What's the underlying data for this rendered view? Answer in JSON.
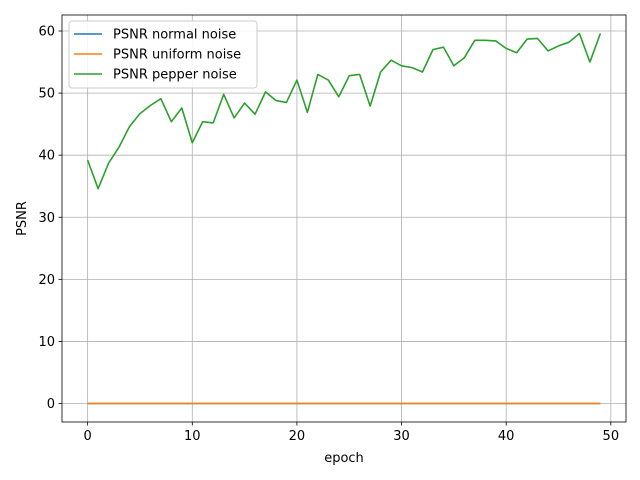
{
  "chart_data": {
    "type": "line",
    "title": "",
    "xlabel": "epoch",
    "ylabel": "PSNR",
    "xlim": [
      -2.45,
      51.45
    ],
    "ylim": [
      -2.98,
      62.58
    ],
    "xticks": [
      0,
      10,
      20,
      30,
      40,
      50
    ],
    "yticks": [
      0,
      10,
      20,
      30,
      40,
      50,
      60
    ],
    "grid": true,
    "legend_position": "upper-left",
    "x": [
      0,
      1,
      2,
      3,
      4,
      5,
      6,
      7,
      8,
      9,
      10,
      11,
      12,
      13,
      14,
      15,
      16,
      17,
      18,
      19,
      20,
      21,
      22,
      23,
      24,
      25,
      26,
      27,
      28,
      29,
      30,
      31,
      32,
      33,
      34,
      35,
      36,
      37,
      38,
      39,
      40,
      41,
      42,
      43,
      44,
      45,
      46,
      47,
      48,
      49
    ],
    "series": [
      {
        "name": "PSNR normal noise",
        "color": "#1f77b4",
        "values": [
          0,
          0,
          0,
          0,
          0,
          0,
          0,
          0,
          0,
          0,
          0,
          0,
          0,
          0,
          0,
          0,
          0,
          0,
          0,
          0,
          0,
          0,
          0,
          0,
          0,
          0,
          0,
          0,
          0,
          0,
          0,
          0,
          0,
          0,
          0,
          0,
          0,
          0,
          0,
          0,
          0,
          0,
          0,
          0,
          0,
          0,
          0,
          0,
          0,
          0
        ]
      },
      {
        "name": "PSNR uniform noise",
        "color": "#ff7f0e",
        "values": [
          0,
          0,
          0,
          0,
          0,
          0,
          0,
          0,
          0,
          0,
          0,
          0,
          0,
          0,
          0,
          0,
          0,
          0,
          0,
          0,
          0,
          0,
          0,
          0,
          0,
          0,
          0,
          0,
          0,
          0,
          0,
          0,
          0,
          0,
          0,
          0,
          0,
          0,
          0,
          0,
          0,
          0,
          0,
          0,
          0,
          0,
          0,
          0,
          0,
          0
        ]
      },
      {
        "name": "PSNR pepper noise",
        "color": "#2ca02c",
        "values": [
          39.2,
          34.6,
          38.7,
          41.3,
          44.6,
          46.7,
          48.0,
          49.1,
          45.4,
          47.6,
          42.0,
          45.4,
          45.2,
          49.8,
          46.0,
          48.4,
          46.6,
          50.2,
          48.8,
          48.5,
          52.1,
          46.9,
          53.0,
          52.1,
          49.4,
          52.8,
          53.0,
          47.9,
          53.4,
          55.3,
          54.4,
          54.1,
          53.4,
          57.0,
          57.4,
          54.4,
          55.7,
          58.5,
          58.5,
          58.4,
          57.2,
          56.5,
          58.7,
          58.8,
          56.8,
          57.6,
          58.2,
          59.6,
          55.0,
          59.6
        ]
      }
    ]
  }
}
